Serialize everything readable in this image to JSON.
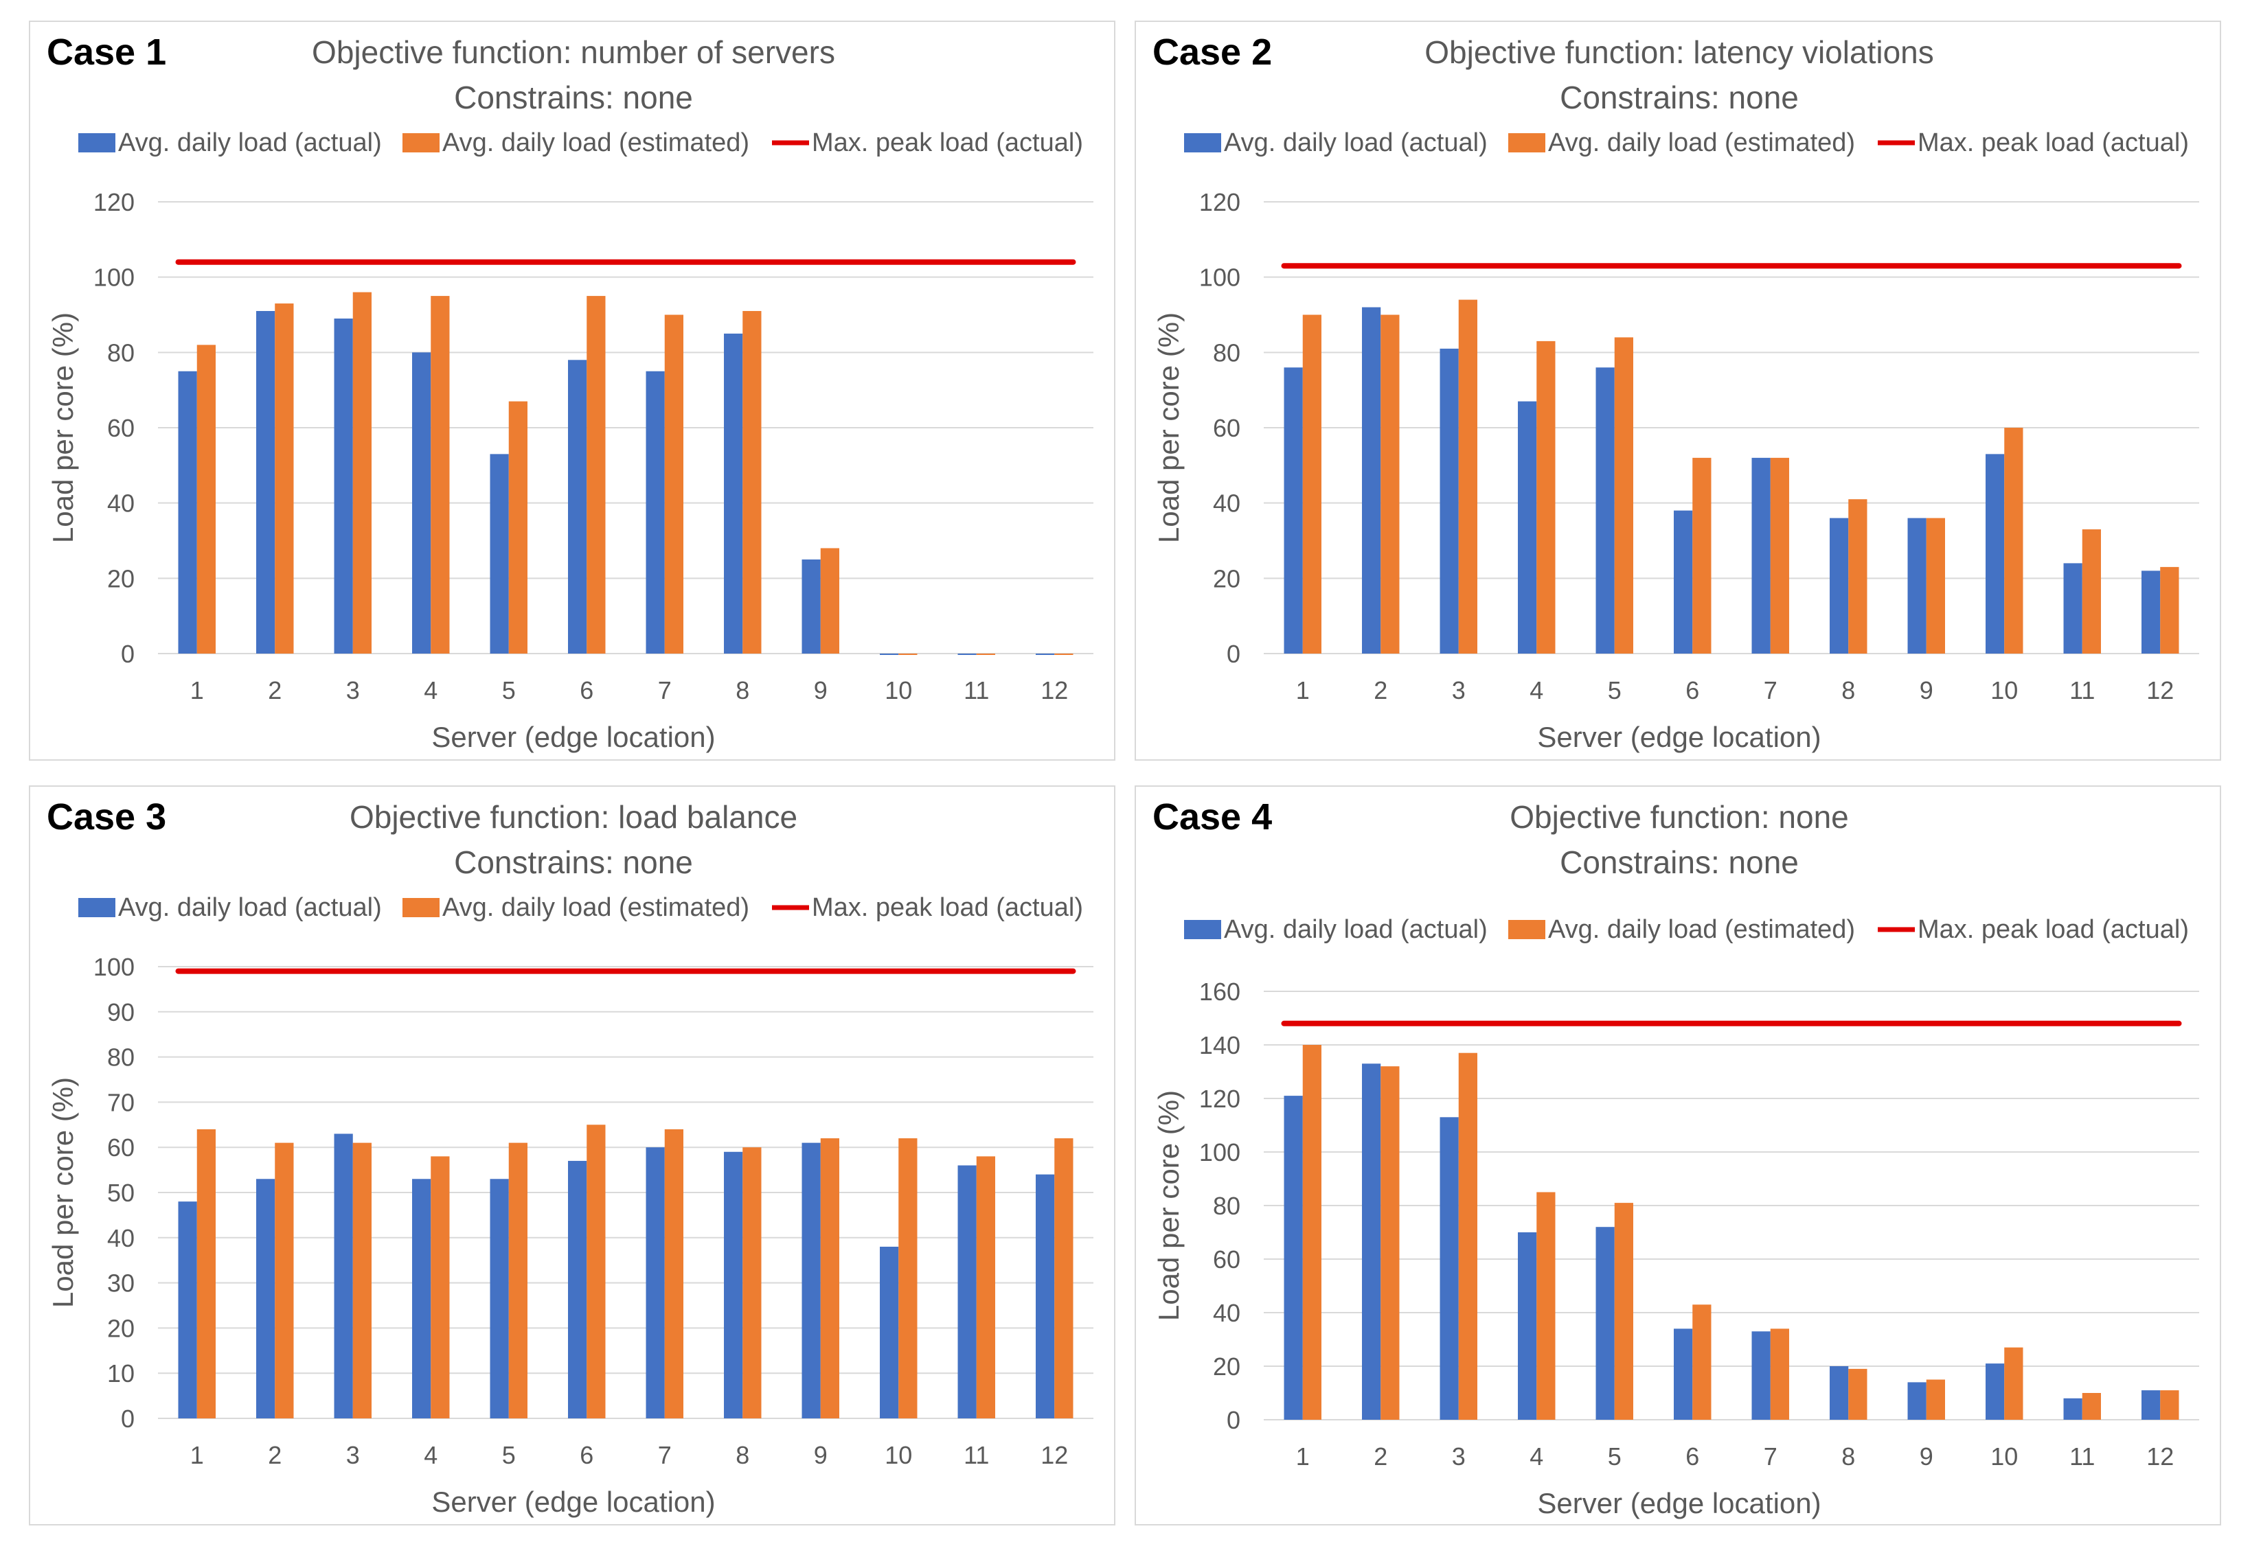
{
  "colors": {
    "actual": "#4472c4",
    "estimated": "#ed7d31",
    "peak": "#e00000",
    "grid": "#d9d9d9",
    "text": "#595959"
  },
  "chart_data": [
    {
      "type": "bar",
      "case_label": "Case 1",
      "title": "Objective function: number of servers",
      "subtitle": "Constrains: none",
      "legend": [
        "Avg. daily load (actual)",
        "Avg. daily load (estimated)",
        "Max. peak load (actual)"
      ],
      "xlabel": "Server (edge location)",
      "ylabel": "Load per core (%)",
      "categories": [
        "1",
        "2",
        "3",
        "4",
        "5",
        "6",
        "7",
        "8",
        "9",
        "10",
        "11",
        "12"
      ],
      "yticks": [
        "0",
        "20",
        "40",
        "60",
        "80",
        "100",
        "120"
      ],
      "ylim": [
        0,
        120
      ],
      "series": [
        {
          "name": "Avg. daily load (actual)",
          "values": [
            75,
            91,
            89,
            80,
            53,
            78,
            75,
            85,
            25,
            0,
            0,
            0
          ]
        },
        {
          "name": "Avg. daily load (estimated)",
          "values": [
            82,
            93,
            96,
            95,
            67,
            95,
            90,
            91,
            28,
            0,
            0,
            0
          ]
        }
      ],
      "peak_line": {
        "name": "Max. peak load (actual)",
        "value": 104
      }
    },
    {
      "type": "bar",
      "case_label": "Case 2",
      "title": "Objective function: latency violations",
      "subtitle": "Constrains: none",
      "legend": [
        "Avg. daily load (actual)",
        "Avg. daily load (estimated)",
        "Max. peak load (actual)"
      ],
      "xlabel": "Server (edge location)",
      "ylabel": "Load per core (%)",
      "categories": [
        "1",
        "2",
        "3",
        "4",
        "5",
        "6",
        "7",
        "8",
        "9",
        "10",
        "11",
        "12"
      ],
      "yticks": [
        "0",
        "20",
        "40",
        "60",
        "80",
        "100",
        "120"
      ],
      "ylim": [
        0,
        120
      ],
      "series": [
        {
          "name": "Avg. daily load (actual)",
          "values": [
            76,
            92,
            81,
            67,
            76,
            38,
            52,
            36,
            36,
            53,
            24,
            22
          ]
        },
        {
          "name": "Avg. daily load (estimated)",
          "values": [
            90,
            90,
            94,
            83,
            84,
            52,
            52,
            41,
            36,
            60,
            33,
            23
          ]
        }
      ],
      "peak_line": {
        "name": "Max. peak load (actual)",
        "value": 103
      }
    },
    {
      "type": "bar",
      "case_label": "Case 3",
      "title": "Objective function: load balance",
      "subtitle": "Constrains: none",
      "legend": [
        "Avg. daily load (actual)",
        "Avg. daily load (estimated)",
        "Max. peak load (actual)"
      ],
      "xlabel": "Server (edge location)",
      "ylabel": "Load per core (%)",
      "categories": [
        "1",
        "2",
        "3",
        "4",
        "5",
        "6",
        "7",
        "8",
        "9",
        "10",
        "11",
        "12"
      ],
      "yticks": [
        "0",
        "10",
        "20",
        "30",
        "40",
        "50",
        "60",
        "70",
        "80",
        "90",
        "100"
      ],
      "ylim": [
        0,
        100
      ],
      "series": [
        {
          "name": "Avg. daily load (actual)",
          "values": [
            48,
            53,
            63,
            53,
            53,
            57,
            60,
            59,
            61,
            38,
            56,
            54
          ]
        },
        {
          "name": "Avg. daily load (estimated)",
          "values": [
            64,
            61,
            61,
            58,
            61,
            65,
            64,
            60,
            62,
            62,
            58,
            62
          ]
        }
      ],
      "peak_line": {
        "name": "Max. peak load (actual)",
        "value": 99
      }
    },
    {
      "type": "bar",
      "case_label": "Case 4",
      "title": "Objective function: none",
      "subtitle": "Constrains: none",
      "legend": [
        "Avg. daily load (actual)",
        "Avg. daily load (estimated)",
        "Max. peak load (actual)"
      ],
      "xlabel": "Server (edge location)",
      "ylabel": "Load per core (%)",
      "categories": [
        "1",
        "2",
        "3",
        "4",
        "5",
        "6",
        "7",
        "8",
        "9",
        "10",
        "11",
        "12"
      ],
      "yticks": [
        "0",
        "20",
        "40",
        "60",
        "80",
        "100",
        "120",
        "140",
        "160"
      ],
      "ylim": [
        0,
        160
      ],
      "series": [
        {
          "name": "Avg. daily load (actual)",
          "values": [
            121,
            133,
            113,
            70,
            72,
            34,
            33,
            20,
            14,
            21,
            8,
            11
          ]
        },
        {
          "name": "Avg. daily load (estimated)",
          "values": [
            140,
            132,
            137,
            85,
            81,
            43,
            34,
            19,
            15,
            27,
            10,
            11
          ]
        }
      ],
      "peak_line": {
        "name": "Max. peak load (actual)",
        "value": 148
      }
    }
  ]
}
